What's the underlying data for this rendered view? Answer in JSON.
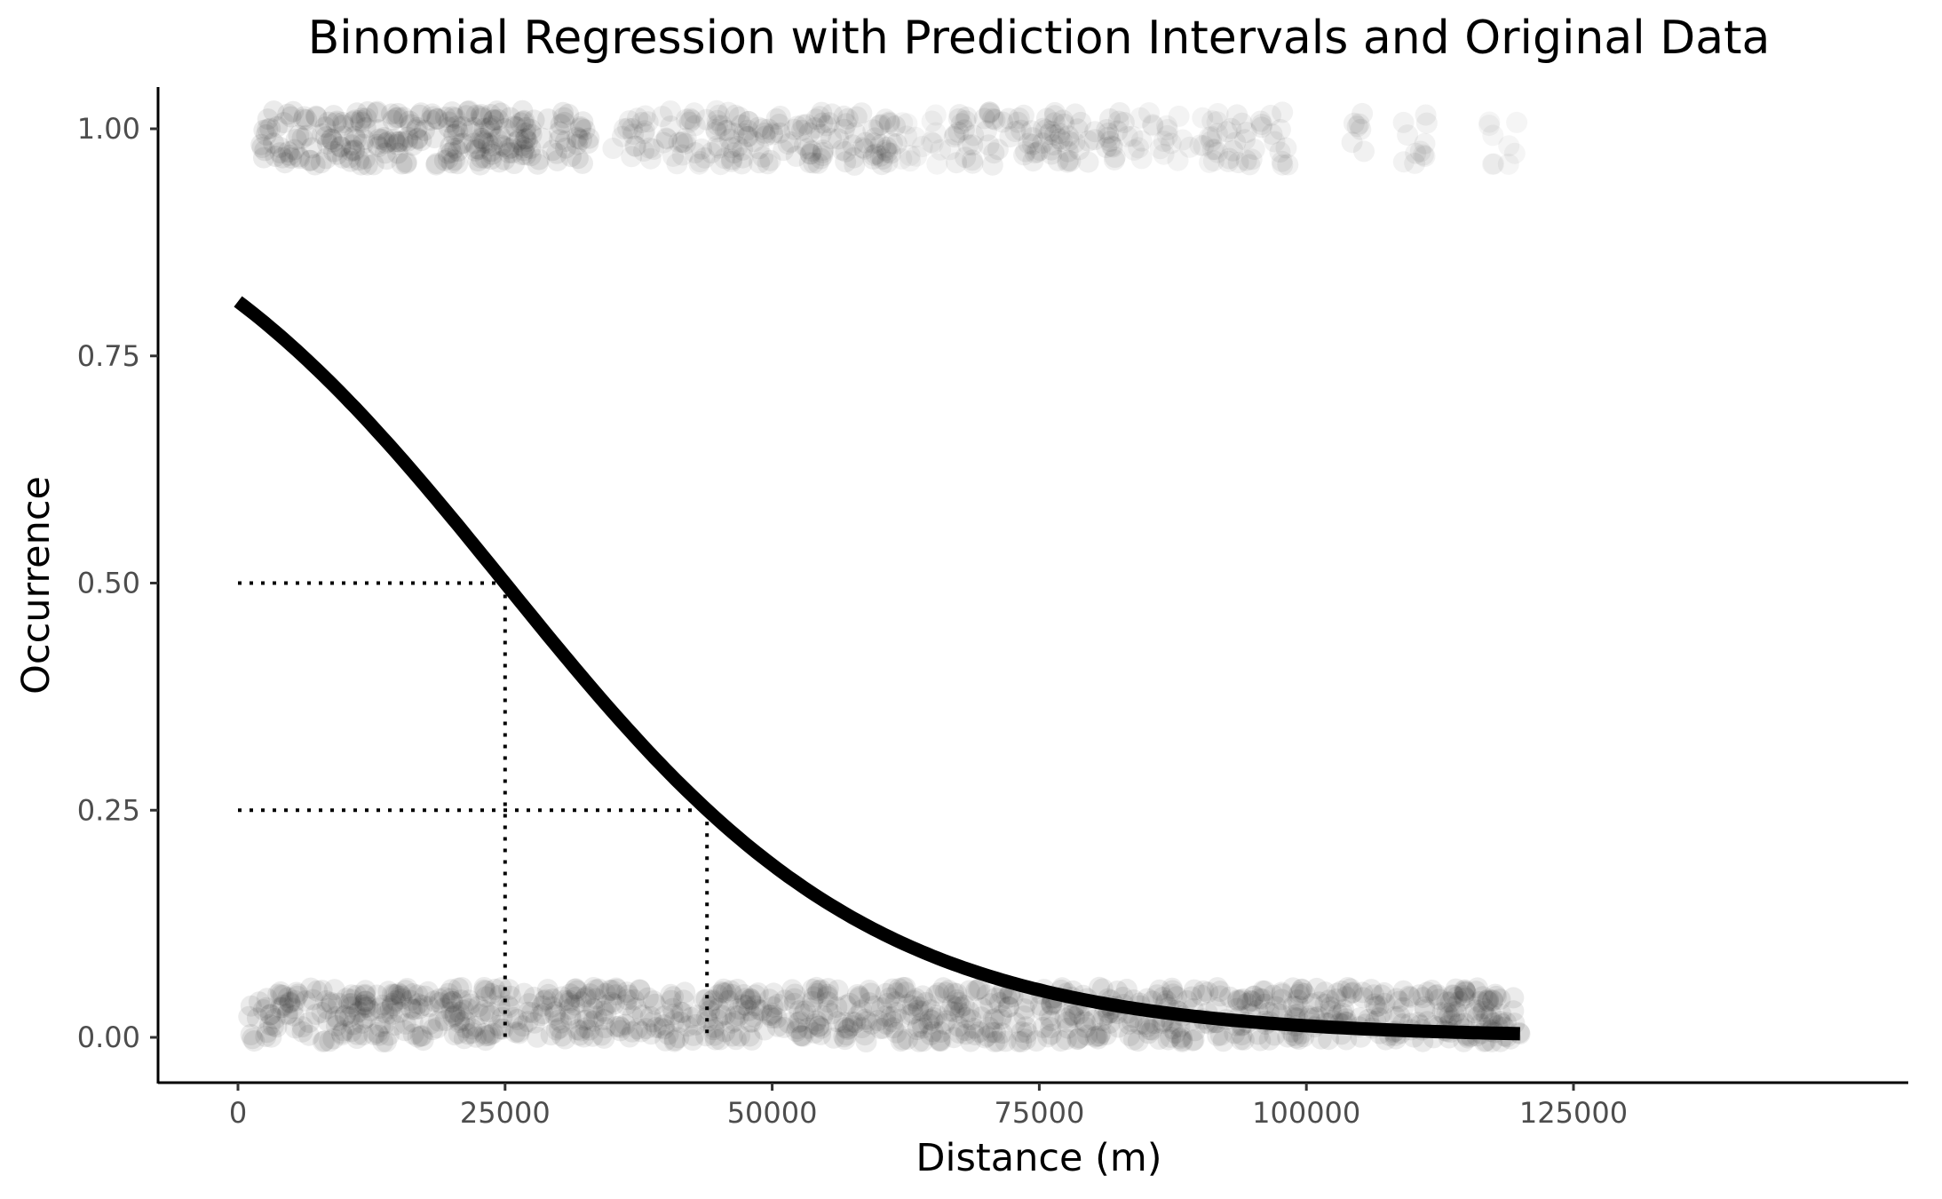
{
  "chart_data": {
    "type": "scatter",
    "title": "Binomial Regression with Prediction Intervals and Original Data",
    "xlabel": "Distance (m)",
    "ylabel": "Occurrence",
    "xlim": [
      -12500,
      125000
    ],
    "ylim": [
      -0.05,
      1.05
    ],
    "x_ticks": [
      0,
      25000,
      50000,
      75000,
      100000,
      125000
    ],
    "x_tick_labels": [
      "0",
      "25000",
      "50000",
      "75000",
      "100000",
      "125000"
    ],
    "y_ticks": [
      0.0,
      0.25,
      0.5,
      0.75,
      1.0
    ],
    "y_tick_labels": [
      "0.00",
      "0.25",
      "0.50",
      "0.75",
      "1.00"
    ],
    "grid": false,
    "legend": "none",
    "colors": {
      "points": "#222222",
      "curve": "#000000",
      "reference": "#000000"
    },
    "series": [
      {
        "kind": "points",
        "y": 1,
        "clusters": [
          {
            "x": [
              2000,
              33000
            ],
            "density": 1.0
          },
          {
            "x": [
              35000,
              46000
            ],
            "density": 0.55
          },
          {
            "x": [
              46000,
              62000
            ],
            "density": 0.75
          },
          {
            "x": [
              62000,
              67000
            ],
            "density": 0.2
          },
          {
            "x": [
              67000,
              83000
            ],
            "density": 0.6
          },
          {
            "x": [
              83000,
              92000
            ],
            "density": 0.3
          },
          {
            "x": [
              92500,
              96000
            ],
            "density": 0.5
          },
          {
            "x": [
              96500,
              98500
            ],
            "density": 0.45
          },
          {
            "x": [
              104000,
              105500
            ],
            "density": 0.45
          },
          {
            "x": [
              109000,
              111500
            ],
            "density": 0.35
          },
          {
            "x": [
              117000,
              120000
            ],
            "density": 0.15
          }
        ]
      },
      {
        "kind": "points",
        "y": 0,
        "clusters": [
          {
            "x": [
              1000,
              120000
            ],
            "density": 1.0
          }
        ]
      },
      {
        "kind": "line",
        "model": "logistic",
        "intercept": 1.45,
        "slope_per_m": -5.8e-05,
        "x_range": [
          0,
          120000
        ]
      }
    ],
    "reference_lines": [
      {
        "y": 0.5,
        "x": 25000
      },
      {
        "y": 0.25,
        "x": 43900
      }
    ]
  }
}
